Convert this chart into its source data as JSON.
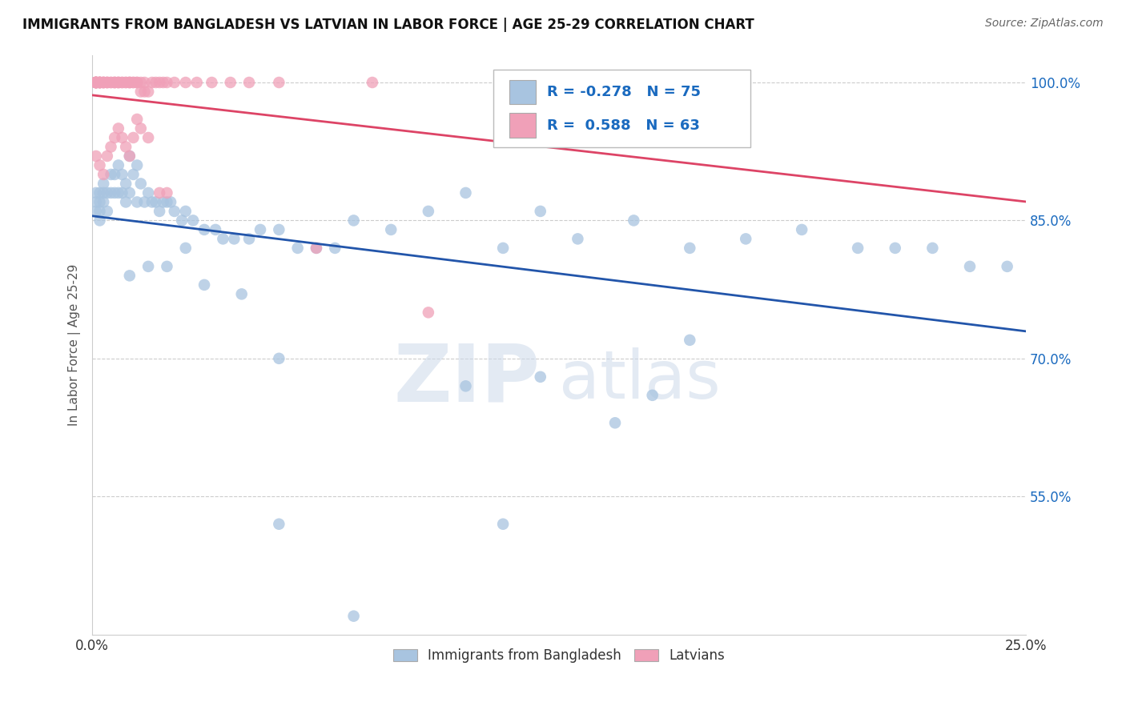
{
  "title": "IMMIGRANTS FROM BANGLADESH VS LATVIAN IN LABOR FORCE | AGE 25-29 CORRELATION CHART",
  "source": "Source: ZipAtlas.com",
  "ylabel": "In Labor Force | Age 25-29",
  "xlim": [
    0.0,
    0.25
  ],
  "ylim": [
    0.4,
    1.03
  ],
  "xtick_pos": [
    0.0,
    0.05,
    0.1,
    0.15,
    0.2,
    0.25
  ],
  "xtick_labels": [
    "0.0%",
    "",
    "",
    "",
    "",
    "25.0%"
  ],
  "ytick_labels": [
    "100.0%",
    "85.0%",
    "70.0%",
    "55.0%"
  ],
  "ytick_positions": [
    1.0,
    0.85,
    0.7,
    0.55
  ],
  "bangladesh_color": "#a8c4e0",
  "latvian_color": "#f0a0b8",
  "trendline_bangladesh_color": "#2255aa",
  "trendline_latvian_color": "#dd4466",
  "legend_label_1": "Immigrants from Bangladesh",
  "legend_label_2": "Latvians",
  "R_bangladesh": -0.278,
  "N_bangladesh": 75,
  "R_latvian": 0.588,
  "N_latvian": 63,
  "watermark_zip": "ZIP",
  "watermark_atlas": "atlas",
  "background_color": "#ffffff",
  "grid_color": "#cccccc",
  "bangladesh_x": [
    0.001,
    0.001,
    0.001,
    0.002,
    0.002,
    0.002,
    0.002,
    0.003,
    0.003,
    0.003,
    0.004,
    0.004,
    0.005,
    0.005,
    0.006,
    0.006,
    0.007,
    0.007,
    0.008,
    0.008,
    0.009,
    0.009,
    0.01,
    0.01,
    0.011,
    0.012,
    0.012,
    0.013,
    0.014,
    0.015,
    0.016,
    0.017,
    0.018,
    0.019,
    0.02,
    0.021,
    0.022,
    0.024,
    0.025,
    0.027,
    0.03,
    0.033,
    0.035,
    0.038,
    0.042,
    0.045,
    0.05,
    0.055,
    0.06,
    0.065,
    0.07,
    0.08,
    0.09,
    0.1,
    0.11,
    0.12,
    0.13,
    0.145,
    0.16,
    0.175,
    0.19,
    0.205,
    0.215,
    0.225,
    0.235,
    0.245,
    0.01,
    0.015,
    0.02,
    0.025,
    0.03,
    0.04,
    0.05,
    0.1,
    0.15
  ],
  "bangladesh_y": [
    0.88,
    0.87,
    0.86,
    0.88,
    0.87,
    0.86,
    0.85,
    0.89,
    0.88,
    0.87,
    0.88,
    0.86,
    0.9,
    0.88,
    0.9,
    0.88,
    0.91,
    0.88,
    0.9,
    0.88,
    0.89,
    0.87,
    0.92,
    0.88,
    0.9,
    0.91,
    0.87,
    0.89,
    0.87,
    0.88,
    0.87,
    0.87,
    0.86,
    0.87,
    0.87,
    0.87,
    0.86,
    0.85,
    0.86,
    0.85,
    0.84,
    0.84,
    0.83,
    0.83,
    0.83,
    0.84,
    0.84,
    0.82,
    0.82,
    0.82,
    0.85,
    0.84,
    0.86,
    0.88,
    0.82,
    0.86,
    0.83,
    0.85,
    0.82,
    0.83,
    0.84,
    0.82,
    0.82,
    0.82,
    0.8,
    0.8,
    0.79,
    0.8,
    0.8,
    0.82,
    0.78,
    0.77,
    0.52,
    0.67,
    0.66
  ],
  "bangladesh_y_low": [
    0.7,
    0.68,
    0.63,
    0.72,
    0.52,
    0.42
  ],
  "bangladesh_x_low": [
    0.05,
    0.12,
    0.14,
    0.16,
    0.11,
    0.07
  ],
  "latvian_x": [
    0.001,
    0.001,
    0.001,
    0.001,
    0.001,
    0.001,
    0.001,
    0.001,
    0.001,
    0.002,
    0.002,
    0.002,
    0.002,
    0.002,
    0.002,
    0.003,
    0.003,
    0.003,
    0.003,
    0.004,
    0.004,
    0.004,
    0.005,
    0.005,
    0.006,
    0.006,
    0.006,
    0.007,
    0.007,
    0.007,
    0.008,
    0.008,
    0.009,
    0.009,
    0.01,
    0.01,
    0.01,
    0.011,
    0.011,
    0.012,
    0.012,
    0.013,
    0.013,
    0.014,
    0.014,
    0.015,
    0.016,
    0.017,
    0.018,
    0.019,
    0.02,
    0.022,
    0.025,
    0.028,
    0.032,
    0.037,
    0.042,
    0.05,
    0.06,
    0.075,
    0.09,
    0.11,
    0.13
  ],
  "latvian_y": [
    1.0,
    1.0,
    1.0,
    1.0,
    1.0,
    1.0,
    1.0,
    1.0,
    1.0,
    1.0,
    1.0,
    1.0,
    1.0,
    1.0,
    1.0,
    1.0,
    1.0,
    1.0,
    1.0,
    1.0,
    1.0,
    1.0,
    1.0,
    1.0,
    1.0,
    1.0,
    1.0,
    1.0,
    1.0,
    1.0,
    1.0,
    1.0,
    1.0,
    1.0,
    1.0,
    1.0,
    1.0,
    1.0,
    1.0,
    1.0,
    1.0,
    1.0,
    0.99,
    1.0,
    0.99,
    0.99,
    1.0,
    1.0,
    1.0,
    1.0,
    1.0,
    1.0,
    1.0,
    1.0,
    1.0,
    1.0,
    1.0,
    1.0,
    0.82,
    1.0,
    0.75,
    1.0,
    1.0
  ],
  "latvian_extra_x": [
    0.001,
    0.002,
    0.003,
    0.004,
    0.005,
    0.006,
    0.007,
    0.008,
    0.009,
    0.01,
    0.011,
    0.012,
    0.013,
    0.015,
    0.018,
    0.02
  ],
  "latvian_extra_y": [
    0.92,
    0.91,
    0.9,
    0.92,
    0.93,
    0.94,
    0.95,
    0.94,
    0.93,
    0.92,
    0.94,
    0.96,
    0.95,
    0.94,
    0.88,
    0.88
  ]
}
